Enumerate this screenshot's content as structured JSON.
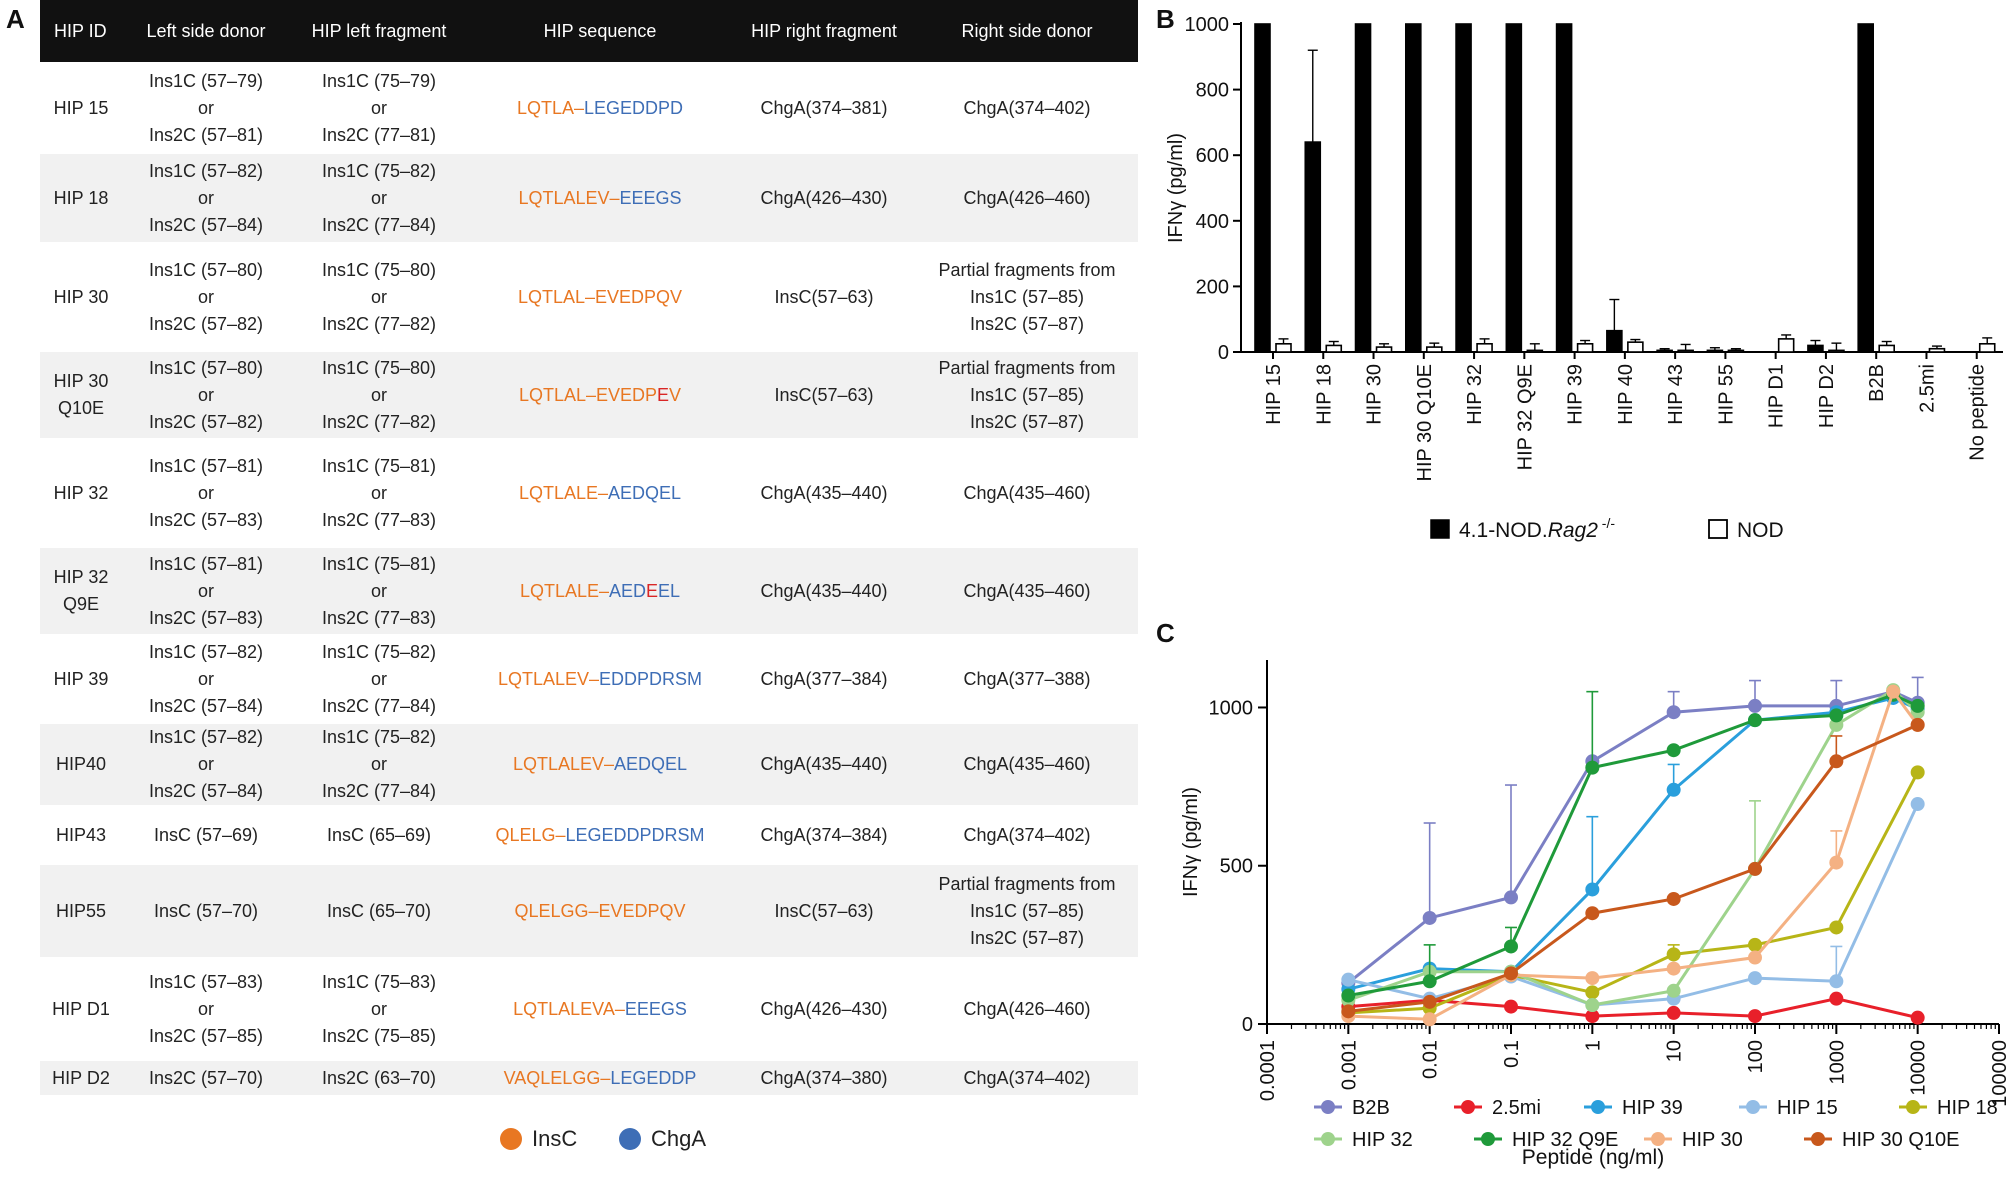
{
  "panel_labels": {
    "a": "A",
    "b": "B",
    "c": "C"
  },
  "table": {
    "headers": [
      "HIP ID",
      "Left side donor",
      "HIP left fragment",
      "HIP sequence",
      "HIP right fragment",
      "Right side donor"
    ],
    "rows": [
      {
        "id": [
          "HIP 15"
        ],
        "left_donor": [
          "Ins1C (57–79)",
          "or",
          "Ins2C (57–81)"
        ],
        "left_frag": [
          "Ins1C (75–79)",
          "or",
          "Ins2C (77–81)"
        ],
        "seq": [
          {
            "t": "LQTLA",
            "c": "ins"
          },
          {
            "t": "–",
            "c": "ins"
          },
          {
            "t": "LEGEDDPD",
            "c": "chg"
          }
        ],
        "right_frag": [
          "ChgA(374–381)"
        ],
        "right_donor": [
          "ChgA(374–402)"
        ]
      },
      {
        "id": [
          "HIP 18"
        ],
        "left_donor": [
          "Ins1C (57–82)",
          "or",
          "Ins2C (57–84)"
        ],
        "left_frag": [
          "Ins1C (75–82)",
          "or",
          "Ins2C (77–84)"
        ],
        "seq": [
          {
            "t": "LQTLALEV",
            "c": "ins"
          },
          {
            "t": "–",
            "c": "ins"
          },
          {
            "t": "EEEGS",
            "c": "chg"
          }
        ],
        "right_frag": [
          "ChgA(426–430)"
        ],
        "right_donor": [
          "ChgA(426–460)"
        ]
      },
      {
        "id": [
          "HIP 30"
        ],
        "left_donor": [
          "Ins1C (57–80)",
          "or",
          "Ins2C (57–82)"
        ],
        "left_frag": [
          "Ins1C (75–80)",
          "or",
          "Ins2C (77–82)"
        ],
        "seq": [
          {
            "t": "LQTLAL",
            "c": "ins"
          },
          {
            "t": "–",
            "c": "ins"
          },
          {
            "t": "EVEDPQV",
            "c": "ins"
          }
        ],
        "right_frag": [
          "InsC(57–63)"
        ],
        "right_donor": [
          "Partial fragments from",
          "Ins1C (57–85)",
          "Ins2C (57–87)"
        ]
      },
      {
        "id": [
          "HIP 30",
          "Q10E"
        ],
        "left_donor": [
          "Ins1C (57–80)",
          "or",
          "Ins2C (57–82)"
        ],
        "left_frag": [
          "Ins1C (75–80)",
          "or",
          "Ins2C (77–82)"
        ],
        "seq": [
          {
            "t": "LQTLAL",
            "c": "ins"
          },
          {
            "t": "–",
            "c": "ins"
          },
          {
            "t": "EVEDP",
            "c": "ins"
          },
          {
            "t": "E",
            "c": "mut"
          },
          {
            "t": "V",
            "c": "ins"
          }
        ],
        "right_frag": [
          "InsC(57–63)"
        ],
        "right_donor": [
          "Partial fragments from",
          "Ins1C (57–85)",
          "Ins2C (57–87)"
        ]
      },
      {
        "id": [
          "HIP 32"
        ],
        "left_donor": [
          "Ins1C (57–81)",
          "or",
          "Ins2C (57–83)"
        ],
        "left_frag": [
          "Ins1C (75–81)",
          "or",
          "Ins2C (77–83)"
        ],
        "seq": [
          {
            "t": "LQTLALE",
            "c": "ins"
          },
          {
            "t": "–",
            "c": "ins"
          },
          {
            "t": "AEDQEL",
            "c": "chg"
          }
        ],
        "right_frag": [
          "ChgA(435–440)"
        ],
        "right_donor": [
          "ChgA(435–460)"
        ]
      },
      {
        "id": [
          "HIP 32",
          "Q9E"
        ],
        "left_donor": [
          "Ins1C (57–81)",
          "or",
          "Ins2C (57–83)"
        ],
        "left_frag": [
          "Ins1C (75–81)",
          "or",
          "Ins2C (77–83)"
        ],
        "seq": [
          {
            "t": "LQTLALE",
            "c": "ins"
          },
          {
            "t": "–",
            "c": "ins"
          },
          {
            "t": "AED",
            "c": "chg"
          },
          {
            "t": "E",
            "c": "mut"
          },
          {
            "t": "EL",
            "c": "chg"
          }
        ],
        "right_frag": [
          "ChgA(435–440)"
        ],
        "right_donor": [
          "ChgA(435–460)"
        ]
      },
      {
        "id": [
          "HIP 39"
        ],
        "left_donor": [
          "Ins1C (57–82)",
          "or",
          "Ins2C (57–84)"
        ],
        "left_frag": [
          "Ins1C (75–82)",
          "or",
          "Ins2C (77–84)"
        ],
        "seq": [
          {
            "t": "LQTLALEV",
            "c": "ins"
          },
          {
            "t": "–",
            "c": "ins"
          },
          {
            "t": "EDDPDRSM",
            "c": "chg"
          }
        ],
        "right_frag": [
          "ChgA(377–384)"
        ],
        "right_donor": [
          "ChgA(377–388)"
        ]
      },
      {
        "id": [
          "HIP40"
        ],
        "left_donor": [
          "Ins1C (57–82)",
          "or",
          "Ins2C (57–84)"
        ],
        "left_frag": [
          "Ins1C (75–82)",
          "or",
          "Ins2C (77–84)"
        ],
        "seq": [
          {
            "t": "LQTLALEV",
            "c": "ins"
          },
          {
            "t": "–",
            "c": "ins"
          },
          {
            "t": "AEDQEL",
            "c": "chg"
          }
        ],
        "right_frag": [
          "ChgA(435–440)"
        ],
        "right_donor": [
          "ChgA(435–460)"
        ]
      },
      {
        "id": [
          "HIP43"
        ],
        "left_donor": [
          "InsC (57–69)"
        ],
        "left_frag": [
          "InsC (65–69)"
        ],
        "seq": [
          {
            "t": "QLELG",
            "c": "ins"
          },
          {
            "t": "–",
            "c": "ins"
          },
          {
            "t": "LEGEDDPDRSM",
            "c": "chg"
          }
        ],
        "right_frag": [
          "ChgA(374–384)"
        ],
        "right_donor": [
          "ChgA(374–402)"
        ]
      },
      {
        "id": [
          "HIP55"
        ],
        "left_donor": [
          "InsC (57–70)"
        ],
        "left_frag": [
          "InsC (65–70)"
        ],
        "seq": [
          {
            "t": "QLELGG",
            "c": "ins"
          },
          {
            "t": "–",
            "c": "ins"
          },
          {
            "t": "EVEDPQV",
            "c": "ins"
          }
        ],
        "right_frag": [
          "InsC(57–63)"
        ],
        "right_donor": [
          "Partial fragments from",
          "Ins1C (57–85)",
          "Ins2C (57–87)"
        ]
      },
      {
        "id": [
          "HIP D1"
        ],
        "left_donor": [
          "Ins1C (57–83)",
          "or",
          "Ins2C (57–85)"
        ],
        "left_frag": [
          "Ins1C (75–83)",
          "or",
          "Ins2C (75–85)"
        ],
        "seq": [
          {
            "t": "LQTLALEVA",
            "c": "ins"
          },
          {
            "t": "–",
            "c": "ins"
          },
          {
            "t": "EEEGS",
            "c": "chg"
          }
        ],
        "right_frag": [
          "ChgA(426–430)"
        ],
        "right_donor": [
          "ChgA(426–460)"
        ]
      },
      {
        "id": [
          "HIP D2"
        ],
        "left_donor": [
          "Ins2C (57–70)"
        ],
        "left_frag": [
          "Ins2C (63–70)"
        ],
        "seq": [
          {
            "t": "VAQLELGG",
            "c": "ins"
          },
          {
            "t": "–",
            "c": "ins"
          },
          {
            "t": "LEGEDDP",
            "c": "chg"
          }
        ],
        "right_frag": [
          "ChgA(374–380)"
        ],
        "right_donor": [
          "ChgA(374–402)"
        ]
      }
    ],
    "legend": [
      {
        "label": "InsC",
        "color": "#e87722"
      },
      {
        "label": "ChgA",
        "color": "#3e6eb6"
      }
    ]
  },
  "colors": {
    "insc": "#e87722",
    "chga": "#3e6eb6",
    "mutation": "#d92626"
  },
  "chart_data": [
    {
      "panel": "B",
      "type": "bar",
      "ylabel": "IFNγ (pg/ml)",
      "ylim": [
        0,
        1000
      ],
      "yticks": [
        0,
        200,
        400,
        600,
        800,
        1000
      ],
      "categories": [
        "HIP 15",
        "HIP 18",
        "HIP 30",
        "HIP 30 Q10E",
        "HIP 32",
        "HIP 32 Q9E",
        "HIP 39",
        "HIP 40",
        "HIP 43",
        "HIP 55",
        "HIP D1",
        "HIP D2",
        "B2B",
        "2.5mi",
        "No peptide"
      ],
      "series": [
        {
          "name": "4.1-NOD.Rag2 -/-",
          "legend_main": "4.1-NOD.",
          "legend_italic": "Rag2",
          "legend_sup": " -/-",
          "fill": "#000000",
          "values": [
            1000,
            640,
            1000,
            1000,
            1000,
            1000,
            1000,
            65,
            5,
            5,
            0,
            20,
            1000,
            0,
            0
          ],
          "errors": [
            0,
            280,
            0,
            0,
            0,
            0,
            0,
            95,
            5,
            8,
            0,
            15,
            0,
            0,
            0
          ]
        },
        {
          "name": "NOD",
          "fill": "#ffffff",
          "values": [
            25,
            20,
            15,
            15,
            25,
            5,
            25,
            30,
            5,
            5,
            40,
            5,
            20,
            10,
            25
          ],
          "errors": [
            15,
            12,
            10,
            12,
            15,
            20,
            10,
            8,
            18,
            5,
            12,
            22,
            12,
            8,
            18
          ]
        }
      ]
    },
    {
      "panel": "C",
      "type": "line",
      "xscale": "log",
      "xlabel": "Peptide (ng/ml)",
      "ylabel": "IFNγ (pg/ml)",
      "xlim": [
        0.0001,
        100000
      ],
      "ylim": [
        0,
        1150
      ],
      "xtick_labels": [
        "0.0001",
        "0.001",
        "0.01",
        "0.1",
        "1",
        "10",
        "100",
        "1000",
        "10000",
        "100000"
      ],
      "ytick_labels": [
        "0",
        "500",
        "1000"
      ],
      "yticks": [
        0,
        500,
        1000
      ],
      "x": [
        0.001,
        0.01,
        0.1,
        1,
        10,
        100,
        1000,
        5000,
        10000
      ],
      "series": [
        {
          "name": "B2B",
          "color": "#7b7fc4",
          "values": [
            130,
            335,
            400,
            830,
            985,
            1005,
            1005,
            1050,
            1015
          ],
          "errors": [
            0,
            300,
            355,
            0,
            65,
            80,
            80,
            0,
            80
          ]
        },
        {
          "name": "2.5mi",
          "color": "#e8202a",
          "values": [
            55,
            75,
            55,
            25,
            35,
            25,
            80,
            null,
            20
          ],
          "errors": [
            0,
            0,
            0,
            0,
            0,
            0,
            0,
            0,
            0
          ]
        },
        {
          "name": "HIP 39",
          "color": "#2a9fdc",
          "values": [
            110,
            175,
            165,
            425,
            740,
            960,
            985,
            1030,
            995
          ],
          "errors": [
            0,
            0,
            0,
            230,
            80,
            0,
            0,
            0,
            0
          ]
        },
        {
          "name": "HIP 15",
          "color": "#93bde6",
          "values": [
            140,
            80,
            150,
            60,
            80,
            145,
            135,
            null,
            695
          ],
          "errors": [
            0,
            0,
            0,
            0,
            0,
            0,
            110,
            0,
            0
          ]
        },
        {
          "name": "HIP 18",
          "color": "#b7b517",
          "values": [
            35,
            50,
            155,
            100,
            220,
            250,
            305,
            null,
            795
          ],
          "errors": [
            0,
            0,
            0,
            0,
            30,
            0,
            0,
            0,
            0
          ]
        },
        {
          "name": "HIP 32",
          "color": "#9ed38c",
          "values": [
            75,
            165,
            165,
            60,
            105,
            490,
            945,
            1055,
            985
          ],
          "errors": [
            0,
            0,
            0,
            0,
            0,
            215,
            0,
            0,
            0
          ]
        },
        {
          "name": "HIP 32 Q9E",
          "color": "#1f9a3a",
          "values": [
            90,
            135,
            245,
            810,
            865,
            960,
            975,
            1040,
            1005
          ],
          "errors": [
            0,
            115,
            60,
            240,
            0,
            0,
            0,
            0,
            0
          ]
        },
        {
          "name": "HIP 30",
          "color": "#f4b183",
          "values": [
            25,
            15,
            155,
            145,
            175,
            210,
            510,
            1050,
            945
          ],
          "errors": [
            0,
            0,
            0,
            0,
            0,
            0,
            100,
            0,
            0
          ]
        },
        {
          "name": "HIP 30 Q10E",
          "color": "#c8581c",
          "values": [
            40,
            70,
            160,
            350,
            395,
            490,
            830,
            null,
            945
          ],
          "errors": [
            0,
            0,
            0,
            0,
            0,
            0,
            80,
            0,
            0
          ]
        }
      ]
    }
  ]
}
